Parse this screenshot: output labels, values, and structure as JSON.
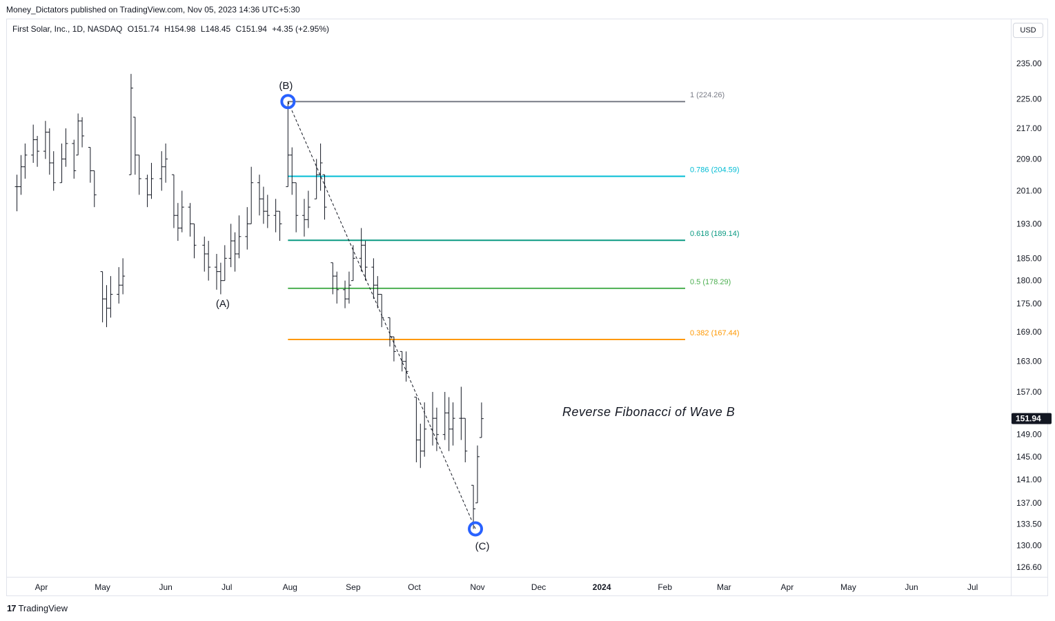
{
  "header": {
    "publish_line": "Money_Dictators published on TradingView.com, Nov 05, 2023 14:36 UTC+5:30"
  },
  "legend": {
    "symbol": "First Solar, Inc., 1D, NASDAQ",
    "open": "O151.74",
    "high": "H154.98",
    "low": "L148.45",
    "close": "C151.94",
    "change": "+4.35 (+2.95%)"
  },
  "currency_button": "USD",
  "footer": {
    "logo_mark": "17",
    "brand": "TradingView"
  },
  "colors": {
    "fib_1": "#787b86",
    "fib_0786": "#00bcd4",
    "fib_0618": "#089981",
    "fib_05": "#4caf50",
    "fib_0382": "#ff9800",
    "pivot_circle": "#2962ff",
    "bars": "#131722",
    "last_price_bg": "#131722"
  },
  "chart_data": {
    "type": "ohlc-bar",
    "symbol": "First Solar, Inc.",
    "interval": "1D",
    "exchange": "NASDAQ",
    "y_ticks": [
      235.0,
      225.0,
      217.0,
      209.0,
      201.0,
      193.0,
      185.0,
      180.0,
      175.0,
      169.0,
      163.0,
      157.0,
      152.0,
      149.0,
      145.0,
      141.0,
      137.0,
      133.5,
      130.0,
      126.6
    ],
    "y_tick_labels": [
      "235.00",
      "225.00",
      "217.00",
      "209.00",
      "201.00",
      "193.00",
      "185.00",
      "180.00",
      "175.00",
      "169.00",
      "163.00",
      "157.00",
      "152.00",
      "149.00",
      "145.00",
      "141.00",
      "137.00",
      "133.50",
      "130.00",
      "126.60"
    ],
    "ylim": [
      124.5,
      240
    ],
    "y_scale": "log",
    "x_ticks": [
      "Apr",
      "May",
      "Jun",
      "Jul",
      "Aug",
      "Sep",
      "Oct",
      "Nov",
      "Dec",
      "2024",
      "Feb",
      "Mar",
      "Apr",
      "May",
      "Jun",
      "Jul"
    ],
    "x_tick_bold": "2024",
    "last_price": 151.94,
    "last_price_label": "151.94",
    "fib_levels": [
      {
        "ratio": "1",
        "value": 224.26,
        "label": "1 (224.26)",
        "color_key": "fib_1"
      },
      {
        "ratio": "0.786",
        "value": 204.59,
        "label": "0.786 (204.59)",
        "color_key": "fib_0786"
      },
      {
        "ratio": "0.618",
        "value": 189.14,
        "label": "0.618 (189.14)",
        "color_key": "fib_0618"
      },
      {
        "ratio": "0.5",
        "value": 178.29,
        "label": "0.5 (178.29)",
        "color_key": "fib_05"
      },
      {
        "ratio": "0.382",
        "value": 167.44,
        "label": "0.382 (167.44)",
        "color_key": "fib_0382"
      }
    ],
    "wave_points": [
      {
        "label": "(A)",
        "date": "2023-06-29",
        "price": 177.5
      },
      {
        "label": "(B)",
        "date": "2023-07-31",
        "price": 224.26
      },
      {
        "label": "(C)",
        "date": "2023-10-31",
        "price": 132.7
      }
    ],
    "annotation": "Reverse Fibonacci of Wave B",
    "series": [
      {
        "date": "2023-03-20",
        "high": 205,
        "low": 196,
        "close": 202
      },
      {
        "date": "2023-03-22",
        "high": 210,
        "low": 200,
        "close": 207
      },
      {
        "date": "2023-03-24",
        "high": 213,
        "low": 204,
        "close": 210
      },
      {
        "date": "2023-03-28",
        "high": 218,
        "low": 208,
        "close": 214
      },
      {
        "date": "2023-03-30",
        "high": 215,
        "low": 207,
        "close": 211
      },
      {
        "date": "2023-04-03",
        "high": 219,
        "low": 209,
        "close": 216
      },
      {
        "date": "2023-04-05",
        "high": 217,
        "low": 205,
        "close": 208
      },
      {
        "date": "2023-04-07",
        "high": 211,
        "low": 201,
        "close": 203
      },
      {
        "date": "2023-04-11",
        "high": 213,
        "low": 203,
        "close": 209
      },
      {
        "date": "2023-04-13",
        "high": 217,
        "low": 207,
        "close": 213
      },
      {
        "date": "2023-04-17",
        "high": 214,
        "low": 204,
        "close": 206
      },
      {
        "date": "2023-04-19",
        "high": 221,
        "low": 210,
        "close": 219
      },
      {
        "date": "2023-04-21",
        "high": 220,
        "low": 212,
        "close": 215
      },
      {
        "date": "2023-04-25",
        "high": 212,
        "low": 203,
        "close": 206
      },
      {
        "date": "2023-04-27",
        "high": 206,
        "low": 197,
        "close": 200
      },
      {
        "date": "2023-05-01",
        "high": 182,
        "low": 171,
        "close": 176
      },
      {
        "date": "2023-05-03",
        "high": 179,
        "low": 170,
        "close": 174
      },
      {
        "date": "2023-05-05",
        "high": 181,
        "low": 172,
        "close": 177
      },
      {
        "date": "2023-05-09",
        "high": 183,
        "low": 175,
        "close": 179
      },
      {
        "date": "2023-05-11",
        "high": 185,
        "low": 177,
        "close": 181
      },
      {
        "date": "2023-05-15",
        "high": 232,
        "low": 205,
        "close": 228
      },
      {
        "date": "2023-05-17",
        "high": 220,
        "low": 205,
        "close": 210
      },
      {
        "date": "2023-05-19",
        "high": 210,
        "low": 200,
        "close": 204
      },
      {
        "date": "2023-05-23",
        "high": 205,
        "low": 197,
        "close": 200
      },
      {
        "date": "2023-05-25",
        "high": 208,
        "low": 199,
        "close": 204
      },
      {
        "date": "2023-05-30",
        "high": 211,
        "low": 201,
        "close": 207
      },
      {
        "date": "2023-06-01",
        "high": 213,
        "low": 203,
        "close": 209
      },
      {
        "date": "2023-06-05",
        "high": 205,
        "low": 192,
        "close": 195
      },
      {
        "date": "2023-06-07",
        "high": 198,
        "low": 189,
        "close": 192
      },
      {
        "date": "2023-06-09",
        "high": 201,
        "low": 191,
        "close": 197
      },
      {
        "date": "2023-06-13",
        "high": 198,
        "low": 190,
        "close": 193
      },
      {
        "date": "2023-06-15",
        "high": 193,
        "low": 185,
        "close": 188
      },
      {
        "date": "2023-06-20",
        "high": 190,
        "low": 182,
        "close": 186
      },
      {
        "date": "2023-06-22",
        "high": 189,
        "low": 180,
        "close": 183
      },
      {
        "date": "2023-06-26",
        "high": 186,
        "low": 178,
        "close": 182
      },
      {
        "date": "2023-06-28",
        "high": 184,
        "low": 177,
        "close": 180
      },
      {
        "date": "2023-06-30",
        "high": 188,
        "low": 180,
        "close": 185
      },
      {
        "date": "2023-07-03",
        "high": 193,
        "low": 183,
        "close": 189
      },
      {
        "date": "2023-07-05",
        "high": 191,
        "low": 182,
        "close": 186
      },
      {
        "date": "2023-07-07",
        "high": 195,
        "low": 185,
        "close": 190
      },
      {
        "date": "2023-07-11",
        "high": 197,
        "low": 187,
        "close": 193
      },
      {
        "date": "2023-07-13",
        "high": 207,
        "low": 193,
        "close": 203
      },
      {
        "date": "2023-07-17",
        "high": 205,
        "low": 195,
        "close": 199
      },
      {
        "date": "2023-07-19",
        "high": 202,
        "low": 193,
        "close": 196
      },
      {
        "date": "2023-07-21",
        "high": 200,
        "low": 192,
        "close": 195
      },
      {
        "date": "2023-07-25",
        "high": 199,
        "low": 191,
        "close": 196
      },
      {
        "date": "2023-07-27",
        "high": 196,
        "low": 189,
        "close": 193
      },
      {
        "date": "2023-07-31",
        "high": 224.26,
        "low": 202,
        "close": 210
      },
      {
        "date": "2023-08-02",
        "high": 212,
        "low": 200,
        "close": 203
      },
      {
        "date": "2023-08-04",
        "high": 203,
        "low": 191,
        "close": 195
      },
      {
        "date": "2023-08-08",
        "high": 199,
        "low": 190,
        "close": 194
      },
      {
        "date": "2023-08-10",
        "high": 201,
        "low": 192,
        "close": 197
      },
      {
        "date": "2023-08-14",
        "high": 209,
        "low": 199,
        "close": 205
      },
      {
        "date": "2023-08-16",
        "high": 213,
        "low": 201,
        "close": 208
      },
      {
        "date": "2023-08-18",
        "high": 205,
        "low": 194,
        "close": 197
      },
      {
        "date": "2023-08-22",
        "high": 184,
        "low": 177,
        "close": 181
      },
      {
        "date": "2023-08-24",
        "high": 182,
        "low": 175,
        "close": 178
      },
      {
        "date": "2023-08-28",
        "high": 180,
        "low": 174,
        "close": 176
      },
      {
        "date": "2023-08-30",
        "high": 182,
        "low": 175,
        "close": 179
      },
      {
        "date": "2023-09-01",
        "high": 188,
        "low": 180,
        "close": 185
      },
      {
        "date": "2023-09-05",
        "high": 192,
        "low": 182,
        "close": 188
      },
      {
        "date": "2023-09-07",
        "high": 189,
        "low": 180,
        "close": 183
      },
      {
        "date": "2023-09-11",
        "high": 185,
        "low": 176,
        "close": 179
      },
      {
        "date": "2023-09-13",
        "high": 181,
        "low": 174,
        "close": 177
      },
      {
        "date": "2023-09-15",
        "high": 177,
        "low": 170,
        "close": 172
      },
      {
        "date": "2023-09-19",
        "high": 172,
        "low": 166,
        "close": 168
      },
      {
        "date": "2023-09-21",
        "high": 168,
        "low": 163,
        "close": 165
      },
      {
        "date": "2023-09-25",
        "high": 165,
        "low": 161,
        "close": 163
      },
      {
        "date": "2023-09-27",
        "high": 165,
        "low": 159,
        "close": 161
      },
      {
        "date": "2023-10-02",
        "high": 156,
        "low": 144,
        "close": 148
      },
      {
        "date": "2023-10-04",
        "high": 151,
        "low": 143,
        "close": 146
      },
      {
        "date": "2023-10-06",
        "high": 155,
        "low": 145,
        "close": 150
      },
      {
        "date": "2023-10-10",
        "high": 157,
        "low": 147,
        "close": 152
      },
      {
        "date": "2023-10-12",
        "high": 154,
        "low": 146,
        "close": 149
      },
      {
        "date": "2023-10-16",
        "high": 157,
        "low": 148,
        "close": 153
      },
      {
        "date": "2023-10-18",
        "high": 156,
        "low": 146,
        "close": 150
      },
      {
        "date": "2023-10-20",
        "high": 155,
        "low": 147,
        "close": 152
      },
      {
        "date": "2023-10-24",
        "high": 158,
        "low": 148,
        "close": 152
      },
      {
        "date": "2023-10-26",
        "high": 152,
        "low": 144,
        "close": 146
      },
      {
        "date": "2023-10-30",
        "high": 140,
        "low": 132.7,
        "close": 136
      },
      {
        "date": "2023-11-01",
        "high": 147,
        "low": 137,
        "close": 145
      },
      {
        "date": "2023-11-03",
        "high": 154.98,
        "low": 148.45,
        "close": 151.94
      }
    ]
  }
}
